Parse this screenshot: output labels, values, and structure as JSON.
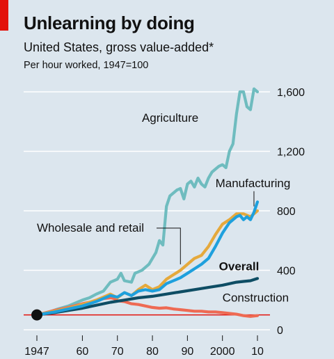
{
  "header": {
    "title": "Unlearning by doing",
    "subtitle": "United States, gross value-added*",
    "note": "Per hour worked, 1947=100"
  },
  "colors": {
    "background": "#dce6ee",
    "brand_red": "#e3120b",
    "agriculture": "#6fbcbf",
    "manufacturing": "#1ea0dd",
    "wholesale": "#e5a93c",
    "overall": "#0e4d64",
    "construction": "#ee6a53",
    "baseline": "#e3120b",
    "grid": "#ffffff"
  },
  "chart_data": {
    "type": "line",
    "title": "Unlearning by doing",
    "subtitle": "United States, gross value-added*",
    "ylabel": "Per hour worked, 1947=100",
    "xlabel": "",
    "xlim": [
      1947,
      2010
    ],
    "ylim": [
      0,
      1600
    ],
    "x_ticks": [
      1947,
      1960,
      1970,
      1980,
      1990,
      2000,
      2010
    ],
    "x_tick_labels": [
      "1947",
      "60",
      "70",
      "80",
      "90",
      "2000",
      "10"
    ],
    "y_ticks": [
      0,
      400,
      800,
      1200,
      1600
    ],
    "y_tick_labels": [
      "0",
      "400",
      "800",
      "1,200",
      "1,600"
    ],
    "grid": true,
    "baseline": 100,
    "base_marker": {
      "x": 1947,
      "y": 100
    },
    "series": [
      {
        "name": "Agriculture",
        "color_key": "agriculture",
        "x": [
          1947,
          1950,
          1953,
          1956,
          1958,
          1960,
          1962,
          1964,
          1966,
          1968,
          1970,
          1971,
          1972,
          1974,
          1975,
          1977,
          1978,
          1979,
          1981,
          1982,
          1983,
          1984,
          1985,
          1987,
          1988,
          1989,
          1990,
          1991,
          1992,
          1993,
          1994,
          1995,
          1996,
          1997,
          1998,
          1999,
          2000,
          2001,
          2002,
          2003,
          2004,
          2005,
          2006,
          2007,
          2008,
          2009,
          2010
        ],
        "values": [
          100,
          115,
          140,
          160,
          180,
          200,
          215,
          240,
          260,
          320,
          340,
          380,
          330,
          320,
          380,
          400,
          420,
          440,
          520,
          600,
          570,
          830,
          900,
          940,
          950,
          880,
          980,
          1000,
          960,
          1020,
          980,
          960,
          1020,
          1060,
          1080,
          1100,
          1110,
          1090,
          1200,
          1250,
          1450,
          1600,
          1600,
          1500,
          1480,
          1620,
          1600
        ]
      },
      {
        "name": "Manufacturing",
        "color_key": "manufacturing",
        "x": [
          1947,
          1952,
          1956,
          1960,
          1964,
          1966,
          1968,
          1970,
          1972,
          1974,
          1976,
          1978,
          1980,
          1982,
          1984,
          1986,
          1988,
          1990,
          1992,
          1994,
          1996,
          1998,
          2000,
          2002,
          2004,
          2005,
          2006,
          2007,
          2008,
          2009,
          2010
        ],
        "values": [
          100,
          120,
          140,
          160,
          190,
          210,
          230,
          220,
          250,
          230,
          260,
          270,
          260,
          270,
          310,
          330,
          350,
          380,
          410,
          440,
          480,
          560,
          650,
          720,
          760,
          770,
          740,
          760,
          740,
          790,
          860
        ]
      },
      {
        "name": "Wholesale and retail",
        "color_key": "wholesale",
        "x": [
          1947,
          1952,
          1956,
          1960,
          1964,
          1966,
          1968,
          1970,
          1972,
          1974,
          1976,
          1978,
          1980,
          1982,
          1984,
          1986,
          1988,
          1990,
          1992,
          1994,
          1996,
          1998,
          2000,
          2002,
          2004,
          2006,
          2008,
          2010
        ],
        "values": [
          100,
          125,
          145,
          170,
          200,
          220,
          240,
          215,
          250,
          230,
          270,
          300,
          270,
          290,
          340,
          370,
          400,
          440,
          480,
          500,
          560,
          640,
          710,
          740,
          780,
          780,
          760,
          800
        ]
      },
      {
        "name": "Overall",
        "color_key": "overall",
        "x": [
          1947,
          1952,
          1956,
          1960,
          1964,
          1968,
          1972,
          1976,
          1980,
          1984,
          1988,
          1992,
          1996,
          2000,
          2004,
          2006,
          2008,
          2010
        ],
        "values": [
          100,
          115,
          130,
          145,
          165,
          185,
          200,
          215,
          225,
          240,
          255,
          270,
          285,
          300,
          320,
          325,
          330,
          345
        ]
      },
      {
        "name": "Construction",
        "color_key": "construction",
        "x": [
          1947,
          1952,
          1956,
          1960,
          1964,
          1966,
          1968,
          1969,
          1970,
          1972,
          1974,
          1976,
          1978,
          1980,
          1982,
          1984,
          1986,
          1988,
          1990,
          1992,
          1994,
          1996,
          1998,
          2000,
          2002,
          2004,
          2006,
          2008,
          2010
        ],
        "values": [
          100,
          130,
          150,
          175,
          195,
          210,
          215,
          210,
          195,
          190,
          175,
          170,
          160,
          150,
          145,
          148,
          140,
          135,
          130,
          125,
          125,
          120,
          120,
          115,
          110,
          105,
          95,
          90,
          95
        ]
      }
    ],
    "annotations": [
      {
        "text": "Agriculture",
        "series": "Agriculture",
        "anchor_x": 1977,
        "anchor_y": 1400,
        "leader": false,
        "bold": false
      },
      {
        "text": "Manufacturing",
        "series": "Manufacturing",
        "anchor_x": 1998,
        "anchor_y": 960,
        "leader": true,
        "leader_to_x": 2009,
        "leader_to_y": 830,
        "bold": false
      },
      {
        "text": "Wholesale and retail",
        "series": "Wholesale and retail",
        "anchor_x": 1947,
        "anchor_y": 660,
        "leader": true,
        "leader_to_x": 1988,
        "leader_to_y": 440,
        "bold": false
      },
      {
        "text": "Overall",
        "series": "Overall",
        "anchor_x": 1999,
        "anchor_y": 400,
        "leader": false,
        "bold": true
      },
      {
        "text": "Construction",
        "series": "Construction",
        "anchor_x": 2000,
        "anchor_y": 190,
        "leader": false,
        "bold": false
      }
    ]
  }
}
